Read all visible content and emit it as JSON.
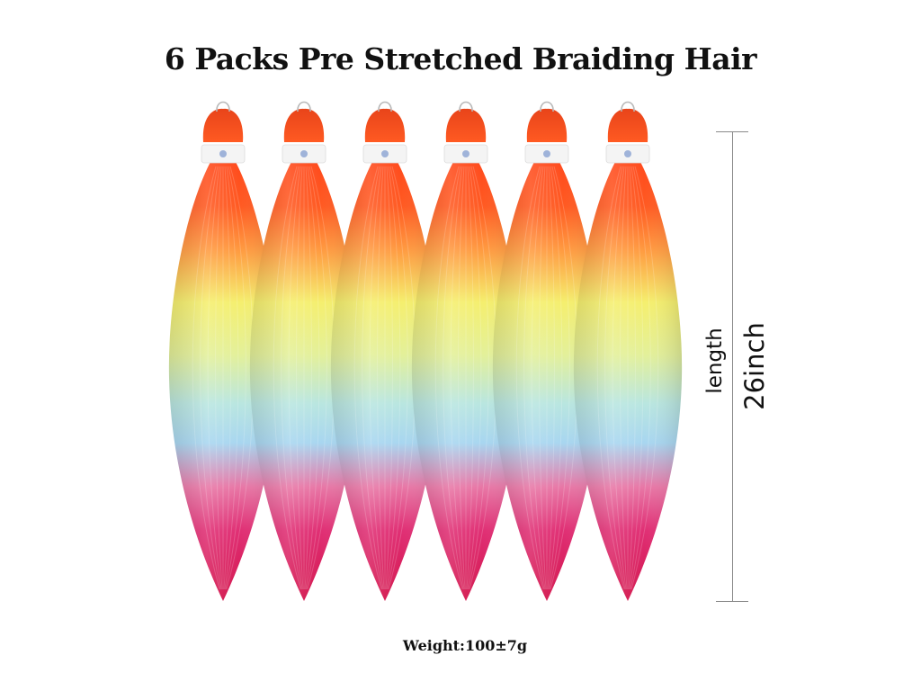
{
  "title": "6 Packs Pre Stretched Braiding Hair",
  "measurement": {
    "label": "length",
    "value": "26inch"
  },
  "weight": "Weight:100±7g",
  "product": {
    "pack_count": 6,
    "color_bands": [
      "#ff4a1c",
      "#ff8a3a",
      "#f7f06a",
      "#bff0d8",
      "#a9d8f0",
      "#e0337a",
      "#d81850"
    ]
  }
}
